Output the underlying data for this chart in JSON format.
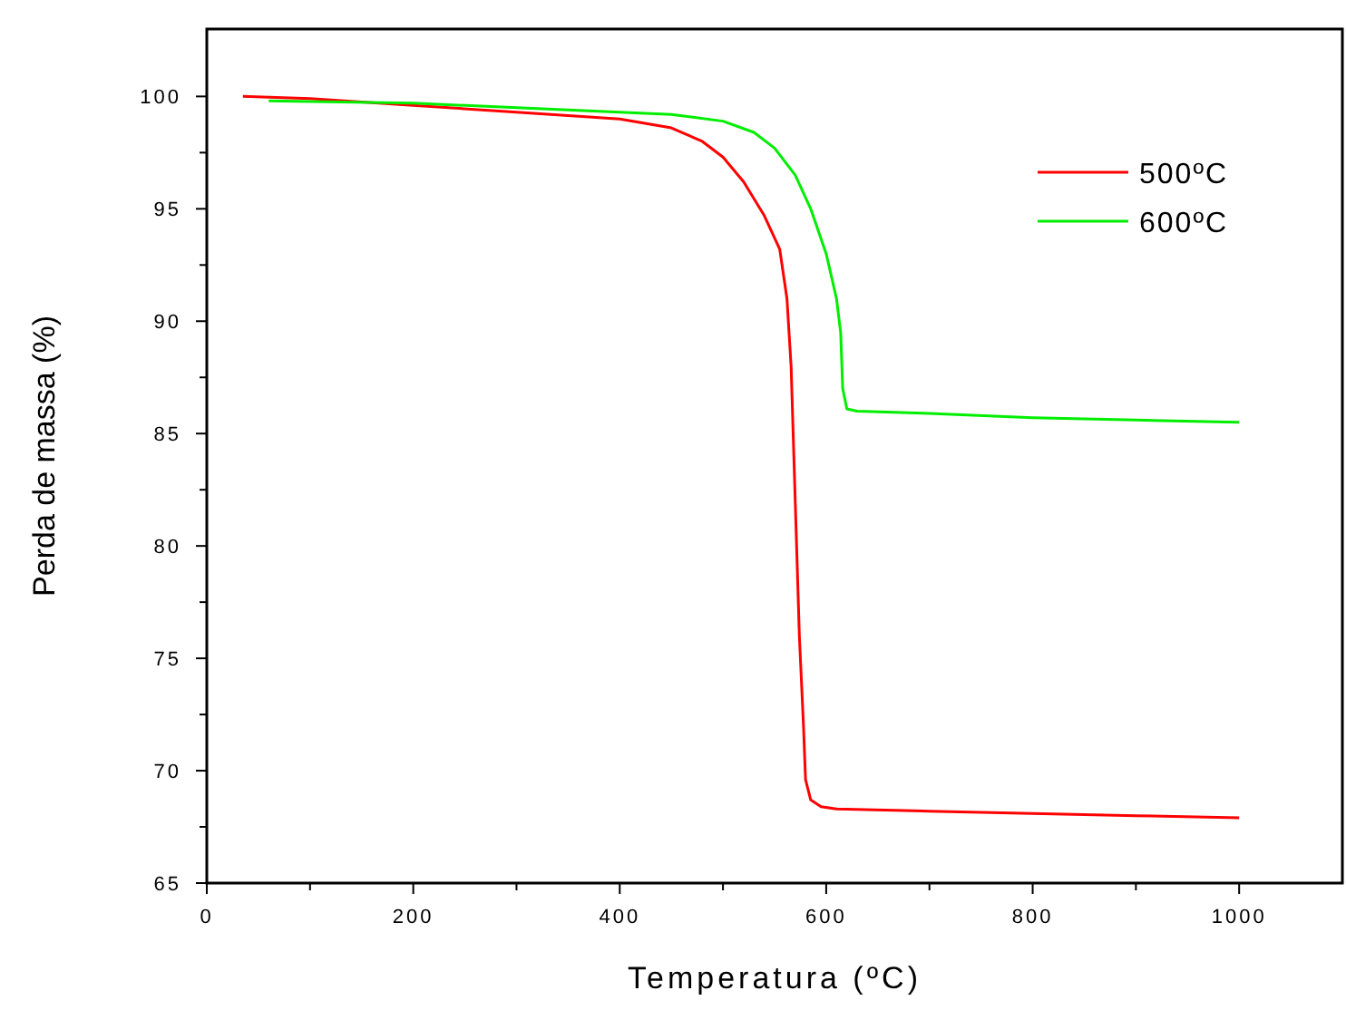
{
  "chart_data": {
    "type": "line",
    "xlabel": "Temperatura (ºC)",
    "ylabel": "Perda de massa (%)",
    "xlim": [
      0,
      1100
    ],
    "xticks": [
      0,
      200,
      400,
      600,
      800,
      1000
    ],
    "ylim": [
      65,
      103
    ],
    "yticks": [
      65,
      70,
      75,
      80,
      85,
      90,
      95,
      100
    ],
    "legend": "top right",
    "grid": false,
    "series": [
      {
        "name": "500ºC",
        "color": "#ff0000",
        "x": [
          35,
          100,
          200,
          300,
          400,
          450,
          480,
          500,
          520,
          540,
          555,
          562,
          566,
          570,
          574,
          578,
          580,
          585,
          595,
          610,
          700,
          800,
          900,
          1000
        ],
        "values": [
          100,
          99.9,
          99.6,
          99.3,
          99.0,
          98.6,
          98.0,
          97.3,
          96.2,
          94.7,
          93.2,
          91,
          88,
          82,
          76,
          72,
          69.6,
          68.7,
          68.4,
          68.3,
          68.2,
          68.1,
          68.0,
          67.9
        ]
      },
      {
        "name": "600ºC",
        "color": "#00ee00",
        "x": [
          60,
          200,
          300,
          400,
          450,
          500,
          530,
          550,
          570,
          585,
          600,
          610,
          614,
          616,
          620,
          630,
          700,
          800,
          900,
          1000
        ],
        "values": [
          99.8,
          99.7,
          99.5,
          99.3,
          99.2,
          98.9,
          98.4,
          97.7,
          96.5,
          95,
          93,
          91,
          89.5,
          87,
          86.1,
          86.0,
          85.9,
          85.7,
          85.6,
          85.5
        ]
      }
    ]
  }
}
